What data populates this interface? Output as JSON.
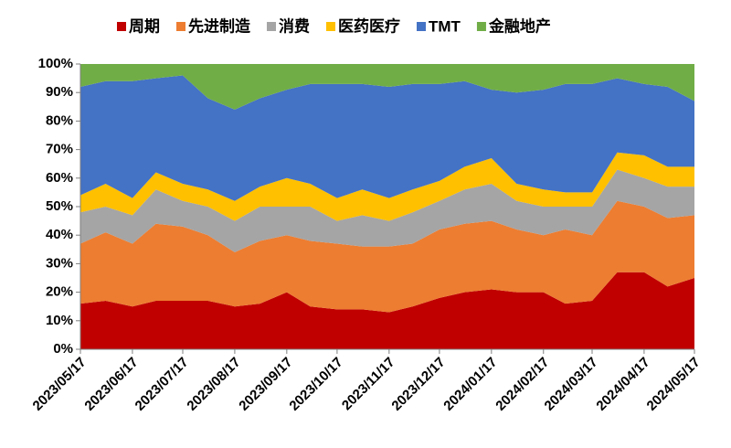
{
  "chart_data": {
    "type": "stacked_area_percent",
    "x": [
      "2023/05/17",
      "2023/06/01",
      "2023/06/17",
      "2023/07/01",
      "2023/07/17",
      "2023/08/01",
      "2023/08/17",
      "2023/09/01",
      "2023/09/17",
      "2023/10/01",
      "2023/10/17",
      "2023/11/01",
      "2023/11/17",
      "2023/12/01",
      "2023/12/17",
      "2024/01/01",
      "2024/01/17",
      "2024/02/01",
      "2024/02/17",
      "2024/03/01",
      "2024/03/17",
      "2024/04/01",
      "2024/04/17",
      "2024/05/01",
      "2024/05/17"
    ],
    "series": [
      {
        "name": "周期",
        "color": "#c00000",
        "values": [
          16,
          17,
          15,
          17,
          17,
          17,
          15,
          16,
          20,
          15,
          14,
          14,
          13,
          15,
          18,
          20,
          21,
          20,
          20,
          16,
          17,
          27,
          27,
          22,
          25
        ]
      },
      {
        "name": "先进制造",
        "color": "#ed7d31",
        "values": [
          21,
          24,
          22,
          27,
          26,
          23,
          19,
          22,
          20,
          23,
          23,
          22,
          23,
          22,
          24,
          24,
          24,
          22,
          20,
          26,
          23,
          25,
          23,
          24,
          22
        ]
      },
      {
        "name": "消费",
        "color": "#a5a5a5",
        "values": [
          11,
          9,
          10,
          12,
          9,
          10,
          11,
          12,
          10,
          12,
          8,
          11,
          9,
          11,
          10,
          12,
          13,
          10,
          10,
          8,
          10,
          11,
          10,
          11,
          10
        ]
      },
      {
        "name": "医药医疗",
        "color": "#ffc000",
        "values": [
          6,
          8,
          6,
          6,
          6,
          6,
          7,
          7,
          10,
          8,
          8,
          9,
          8,
          8,
          7,
          8,
          9,
          6,
          6,
          5,
          5,
          6,
          8,
          7,
          7
        ]
      },
      {
        "name": "TMT",
        "color": "#4472c4",
        "values": [
          38,
          36,
          41,
          33,
          38,
          32,
          32,
          31,
          31,
          35,
          40,
          37,
          39,
          37,
          34,
          30,
          24,
          32,
          35,
          38,
          38,
          26,
          25,
          28,
          23
        ]
      },
      {
        "name": "金融地产",
        "color": "#70ad47",
        "values": [
          8,
          6,
          6,
          5,
          4,
          12,
          16,
          12,
          9,
          7,
          7,
          7,
          8,
          7,
          7,
          6,
          9,
          10,
          9,
          7,
          7,
          5,
          7,
          8,
          13
        ]
      }
    ],
    "xlim": [
      "2023/05/17",
      "2024/05/17"
    ],
    "xticks": [
      "2023/05/17",
      "2023/06/17",
      "2023/07/17",
      "2023/08/17",
      "2023/09/17",
      "2023/10/17",
      "2023/11/17",
      "2023/12/17",
      "2024/01/17",
      "2024/02/17",
      "2024/03/17",
      "2024/04/17",
      "2024/05/17"
    ],
    "ylim": [
      0,
      100
    ],
    "yticks": [
      {
        "value": 0,
        "label": "0%"
      },
      {
        "value": 10,
        "label": "10%"
      },
      {
        "value": 20,
        "label": "20%"
      },
      {
        "value": 30,
        "label": "30%"
      },
      {
        "value": 40,
        "label": "40%"
      },
      {
        "value": 50,
        "label": "50%"
      },
      {
        "value": 60,
        "label": "60%"
      },
      {
        "value": 70,
        "label": "70%"
      },
      {
        "value": 80,
        "label": "80%"
      },
      {
        "value": 90,
        "label": "90%"
      },
      {
        "value": 100,
        "label": "100%"
      }
    ],
    "legend": "top"
  }
}
